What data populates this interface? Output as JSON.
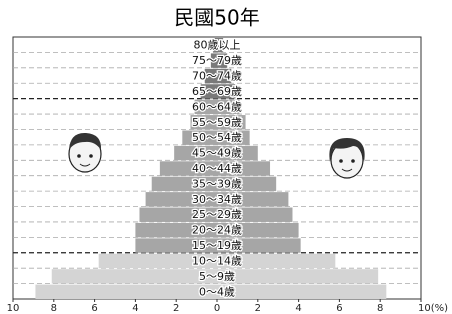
{
  "chart_data": {
    "type": "pyramid",
    "title": "民國50年",
    "categories": [
      "0～4歲",
      "5～9歲",
      "10～14歲",
      "15～19歲",
      "20～24歲",
      "25～29歲",
      "30～34歲",
      "35～39歲",
      "40～44歲",
      "45～49歲",
      "50～54歲",
      "55～59歲",
      "60～64歲",
      "65～69歲",
      "70～74歲",
      "75～79歲",
      "80歲以上"
    ],
    "series": [
      {
        "values": [
          8.9,
          8.1,
          5.8,
          4.0,
          4.0,
          3.8,
          3.5,
          3.2,
          2.8,
          2.1,
          1.7,
          1.3,
          1.1,
          0.8,
          0.6,
          0.3,
          0.2
        ]
      },
      {
        "values": [
          8.3,
          7.9,
          5.8,
          4.1,
          4.0,
          3.7,
          3.5,
          2.9,
          2.6,
          2.0,
          1.6,
          1.4,
          1.1,
          0.9,
          0.7,
          0.5,
          0.3
        ]
      }
    ],
    "bar_colors": [
      "#d4d4d4",
      "#d4d4d4",
      "#d4d4d4",
      "#a6a6a6",
      "#a6a6a6",
      "#a6a6a6",
      "#a6a6a6",
      "#a6a6a6",
      "#a6a6a6",
      "#a6a6a6",
      "#a6a6a6",
      "#a6a6a6",
      "#a6a6a6",
      "#7a7a7a",
      "#7a7a7a",
      "#7a7a7a",
      "#7a7a7a"
    ],
    "xlim": [
      -10,
      10
    ],
    "xticks": [
      {
        "value": -10,
        "label": "10"
      },
      {
        "value": -8,
        "label": "8"
      },
      {
        "value": -6,
        "label": "6"
      },
      {
        "value": -4,
        "label": "4"
      },
      {
        "value": -2,
        "label": "2"
      },
      0,
      2,
      4,
      6,
      8,
      {
        "value": 10,
        "label": "10(%)"
      }
    ]
  }
}
